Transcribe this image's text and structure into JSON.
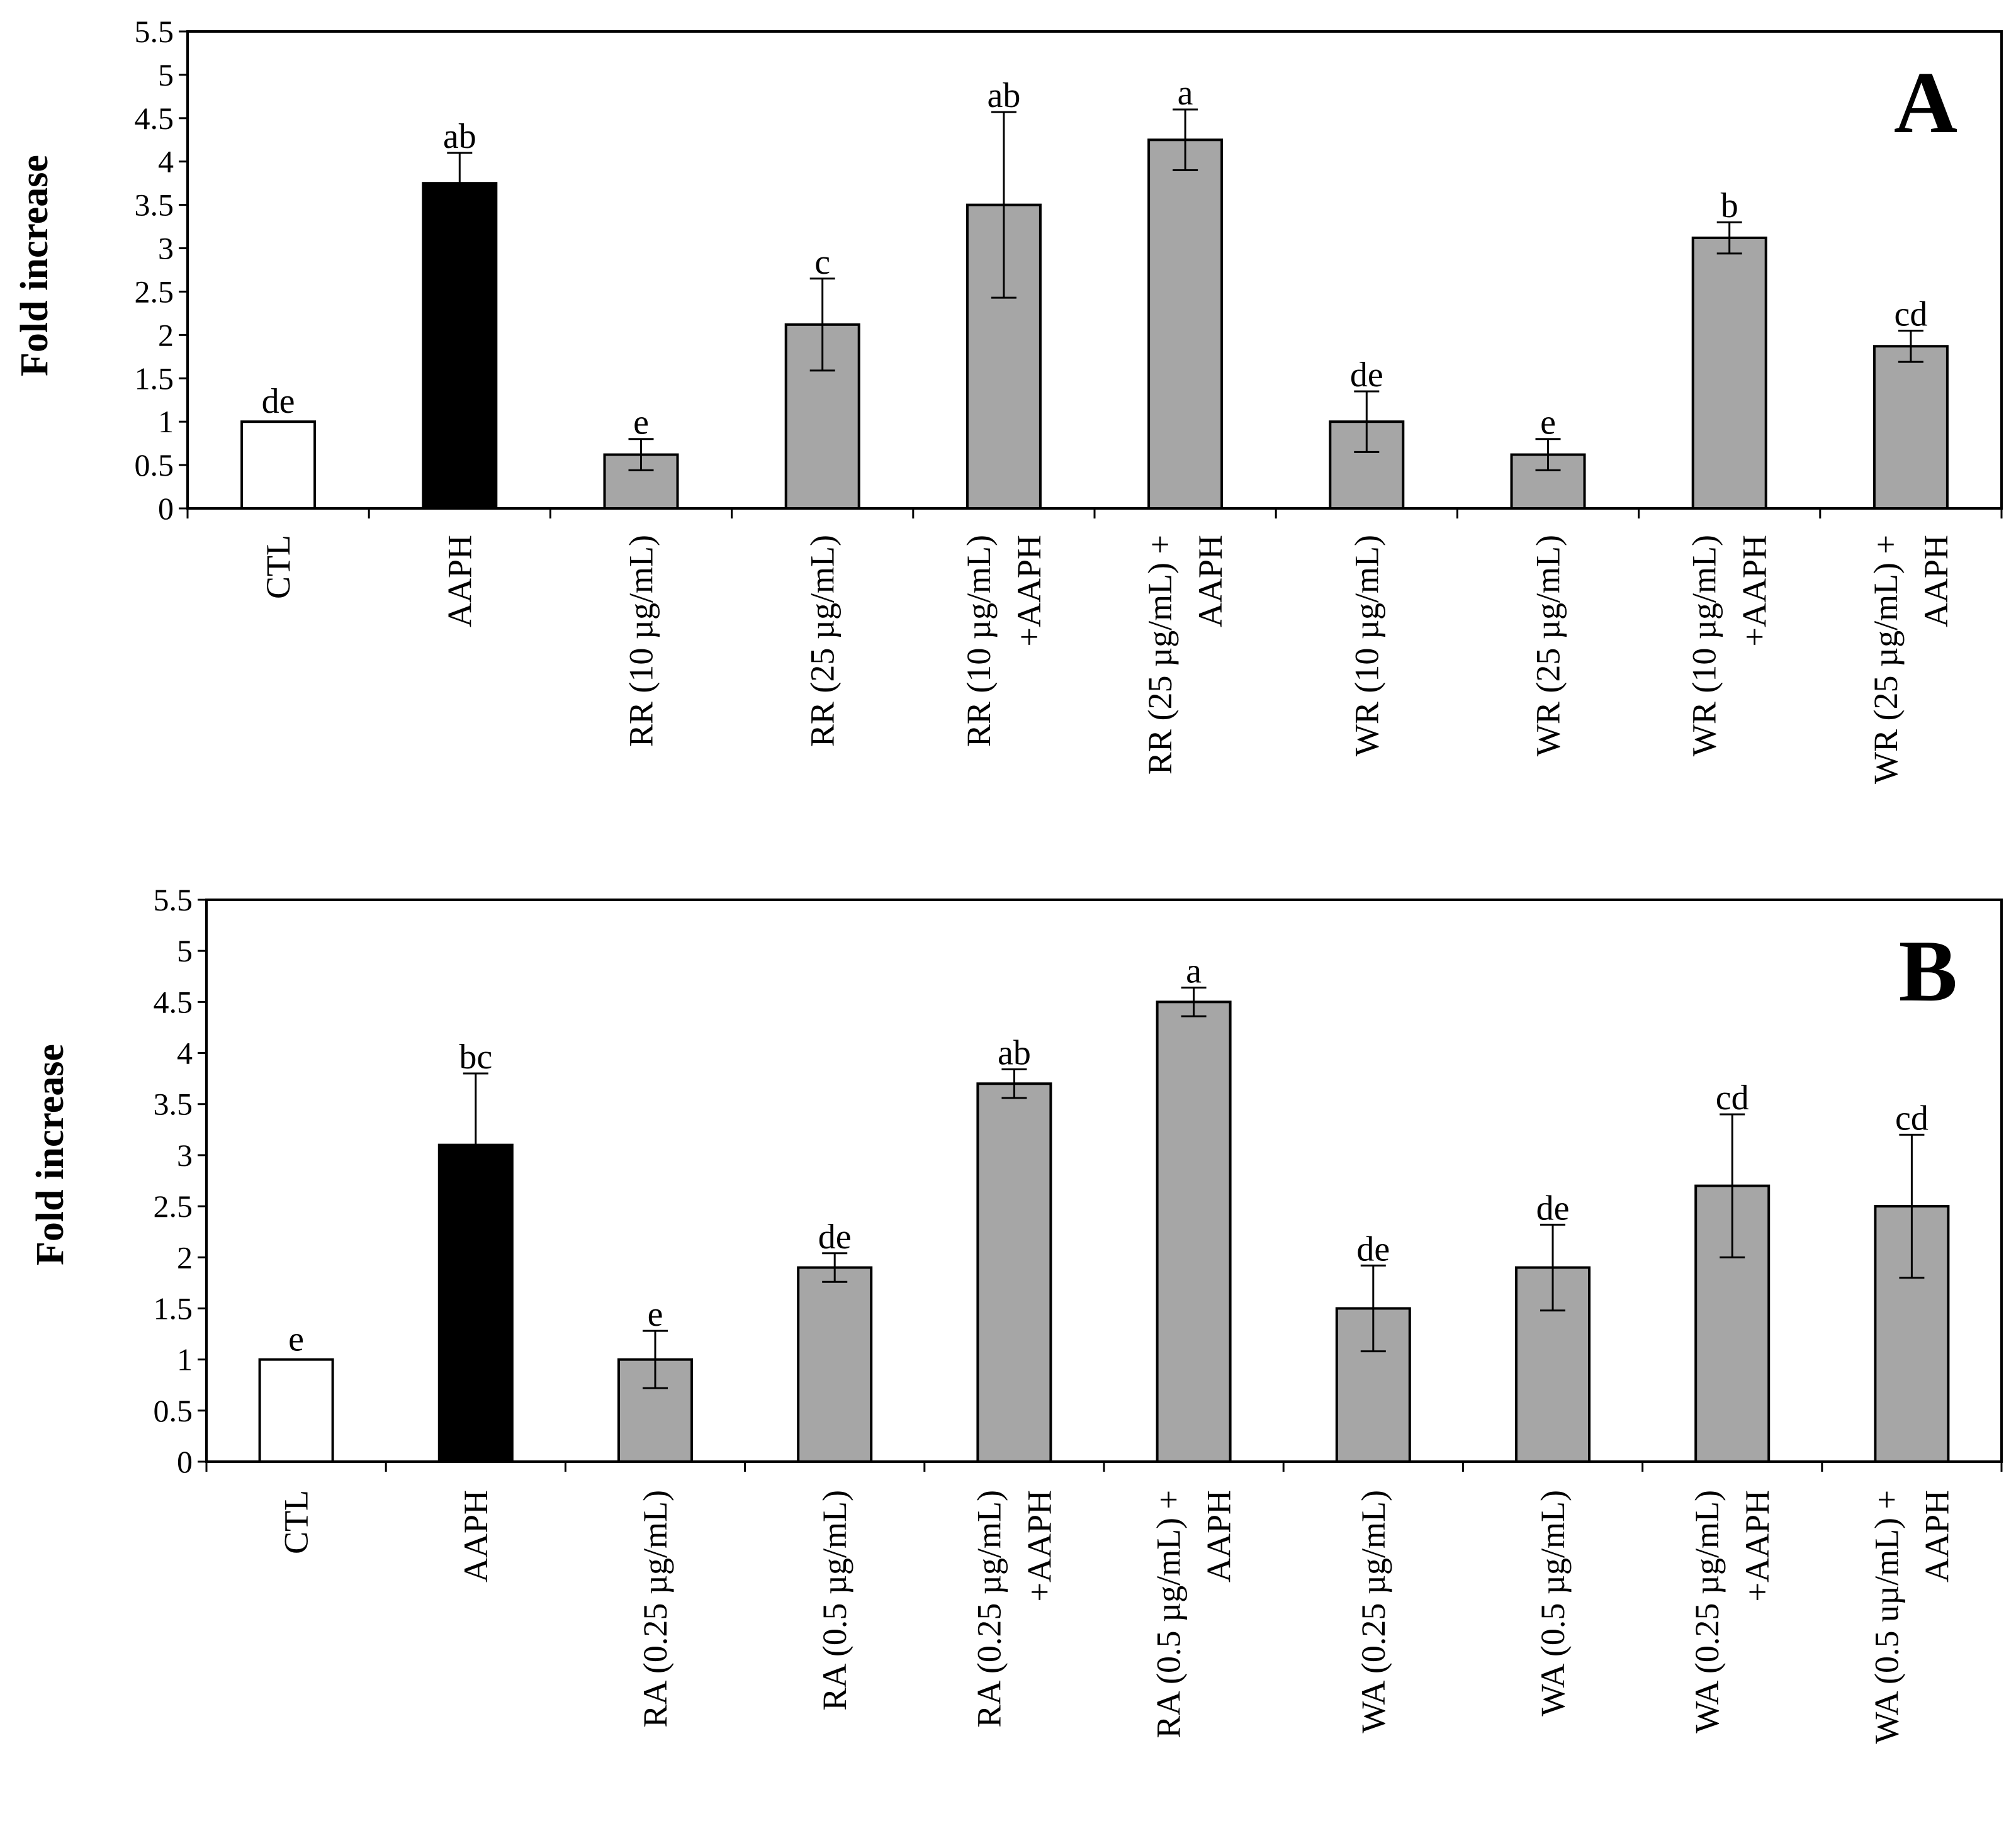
{
  "chart_data": [
    {
      "type": "bar",
      "panel": "A",
      "ylabel": "Fold increase",
      "ylim": [
        0,
        5.5
      ],
      "yticks": [
        0,
        0.5,
        1,
        1.5,
        2,
        2.5,
        3,
        3.5,
        4,
        4.5,
        5,
        5.5
      ],
      "ytick_labels": [
        "0",
        "0.5",
        "1",
        "1.5",
        "2",
        "2.5",
        "3",
        "3.5",
        "4",
        "4.5",
        "5",
        "5.5"
      ],
      "categories": [
        [
          "CTL"
        ],
        [
          "AAPH"
        ],
        [
          "RR (10 µg/mL)"
        ],
        [
          "RR (25 µg/mL)"
        ],
        [
          "RR (10 µg/mL)",
          "+AAPH"
        ],
        [
          "RR (25 µg/mL) +",
          "AAPH"
        ],
        [
          "WR (10 µg/mL)"
        ],
        [
          "WR (25 µg/mL)"
        ],
        [
          "WR (10 µg/mL)",
          "+AAPH"
        ],
        [
          "WR (25 µg/mL) +",
          "AAPH"
        ]
      ],
      "values": [
        1.0,
        3.75,
        0.62,
        2.12,
        3.5,
        4.25,
        1.0,
        0.62,
        3.12,
        1.87
      ],
      "errors": [
        0,
        0.35,
        0.18,
        0.53,
        1.07,
        0.35,
        0.35,
        0.18,
        0.18,
        0.18
      ],
      "labels": [
        "de",
        "ab",
        "e",
        "c",
        "ab",
        "a",
        "de",
        "e",
        "b",
        "cd"
      ],
      "colors": [
        "#ffffff",
        "#000000",
        "#a6a6a6",
        "#a6a6a6",
        "#a6a6a6",
        "#a6a6a6",
        "#a6a6a6",
        "#a6a6a6",
        "#a6a6a6",
        "#a6a6a6"
      ]
    },
    {
      "type": "bar",
      "panel": "B",
      "ylabel": "Fold increase",
      "ylim": [
        0,
        5.5
      ],
      "yticks": [
        0,
        0.5,
        1,
        1.5,
        2,
        2.5,
        3,
        3.5,
        4,
        4.5,
        5,
        5.5
      ],
      "ytick_labels": [
        "0",
        "0.5",
        "1",
        "1.5",
        "2",
        "2.5",
        "3",
        "3.5",
        "4",
        "4.5",
        "5",
        "5.5"
      ],
      "categories": [
        [
          "CTL"
        ],
        [
          "AAPH"
        ],
        [
          "RA (0.25 µg/mL)"
        ],
        [
          "RA (0.5 µg/mL)"
        ],
        [
          "RA (0.25 µg/mL)",
          "+AAPH"
        ],
        [
          "RA (0.5 µg/mL) +",
          "AAPH"
        ],
        [
          "WA (0.25 µg/mL)"
        ],
        [
          "WA (0.5 µg/mL)"
        ],
        [
          "WA (0.25 µg/mL)",
          "+AAPH"
        ],
        [
          "WA (0.5 uµ/mL) +",
          "AAPH"
        ]
      ],
      "values": [
        1.0,
        3.1,
        1.0,
        1.9,
        3.7,
        4.5,
        1.5,
        1.9,
        2.7,
        2.5
      ],
      "errors": [
        0,
        0.7,
        0.28,
        0.14,
        0.14,
        0.14,
        0.42,
        0.42,
        0.7,
        0.7
      ],
      "labels": [
        "e",
        "bc",
        "e",
        "de",
        "ab",
        "a",
        "de",
        "de",
        "cd",
        "cd"
      ],
      "colors": [
        "#ffffff",
        "#000000",
        "#a6a6a6",
        "#a6a6a6",
        "#a6a6a6",
        "#a6a6a6",
        "#a6a6a6",
        "#a6a6a6",
        "#a6a6a6",
        "#a6a6a6"
      ]
    }
  ]
}
